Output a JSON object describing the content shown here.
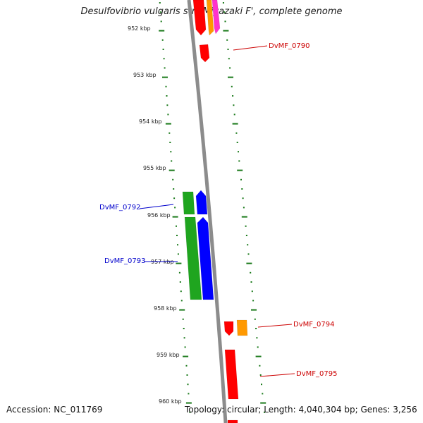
{
  "title": "Desulfovibrio vulgaris str. 'Miyazaki F', complete genome",
  "footer": {
    "accession": "Accession: NC_011769",
    "stats": "Topology: circular; Length: 4,040,304 bp; Genes: 3,256"
  },
  "ticks": [
    {
      "label": "952 kbp"
    },
    {
      "label": "953 kbp"
    },
    {
      "label": "954 kbp"
    },
    {
      "label": "955 kbp"
    },
    {
      "label": "956 kbp"
    },
    {
      "label": "957 kbp"
    },
    {
      "label": "958 kbp"
    },
    {
      "label": "959 kbp"
    },
    {
      "label": "960 kbp"
    }
  ],
  "gene_labels": [
    {
      "text": "DvMF_0790",
      "color": "#cc0000"
    },
    {
      "text": "DvMF_0792",
      "color": "#0000cc"
    },
    {
      "text": "DvMF_0793",
      "color": "#0000cc"
    },
    {
      "text": "DvMF_0794",
      "color": "#cc0000"
    },
    {
      "text": "DvMF_0795",
      "color": "#cc0000"
    }
  ],
  "colors": {
    "backbone": "#8c8c8c",
    "ticks": "#1a7a1a",
    "cds_red": "#ff0000",
    "cds_blue": "#0000ff",
    "cds_green": "#1fa51f",
    "cds_orange": "#ff9900",
    "cds_magenta": "#ff33cc"
  }
}
